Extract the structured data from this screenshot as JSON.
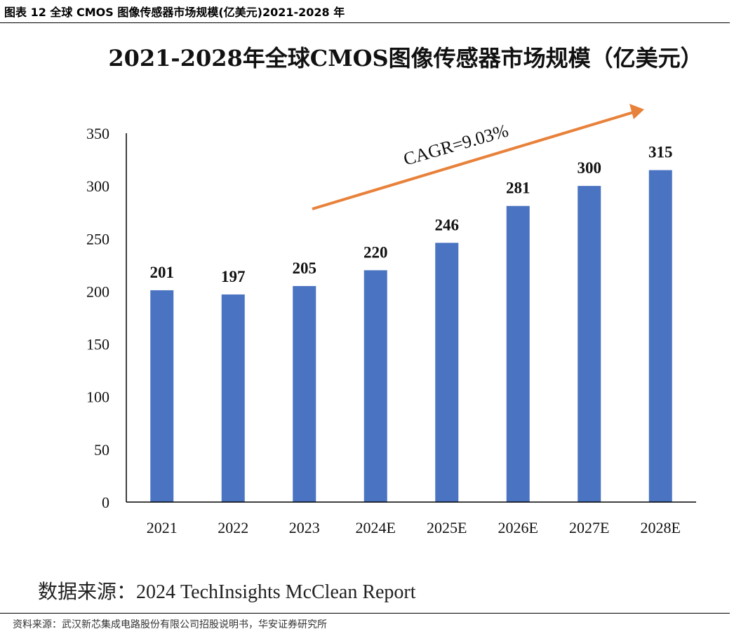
{
  "caption": "图表 12 全球 CMOS 图像传感器市场规模(亿美元)2021-2028 年",
  "chart_source": "数据来源：2024 TechInsights McClean Report",
  "page_source": "资料来源：武汉新芯集成电路股份有限公司招股说明书，华安证券研究所",
  "colors": {
    "bar": "#4a73c2",
    "arrow": "#e8813a",
    "axis": "#000000"
  },
  "chart_data": {
    "type": "bar",
    "title": "2021-2028年全球CMOS图像传感器市场规模（亿美元）",
    "xlabel": "",
    "ylabel": "",
    "categories": [
      "2021",
      "2022",
      "2023",
      "2024E",
      "2025E",
      "2026E",
      "2027E",
      "2028E"
    ],
    "values": [
      201,
      197,
      205,
      220,
      246,
      281,
      300,
      315
    ],
    "ylim": [
      0,
      350
    ],
    "yticks": [
      0,
      50,
      100,
      150,
      200,
      250,
      300,
      350
    ],
    "grid": false,
    "legend": "none",
    "annotation": "CAGR=9.03%"
  }
}
